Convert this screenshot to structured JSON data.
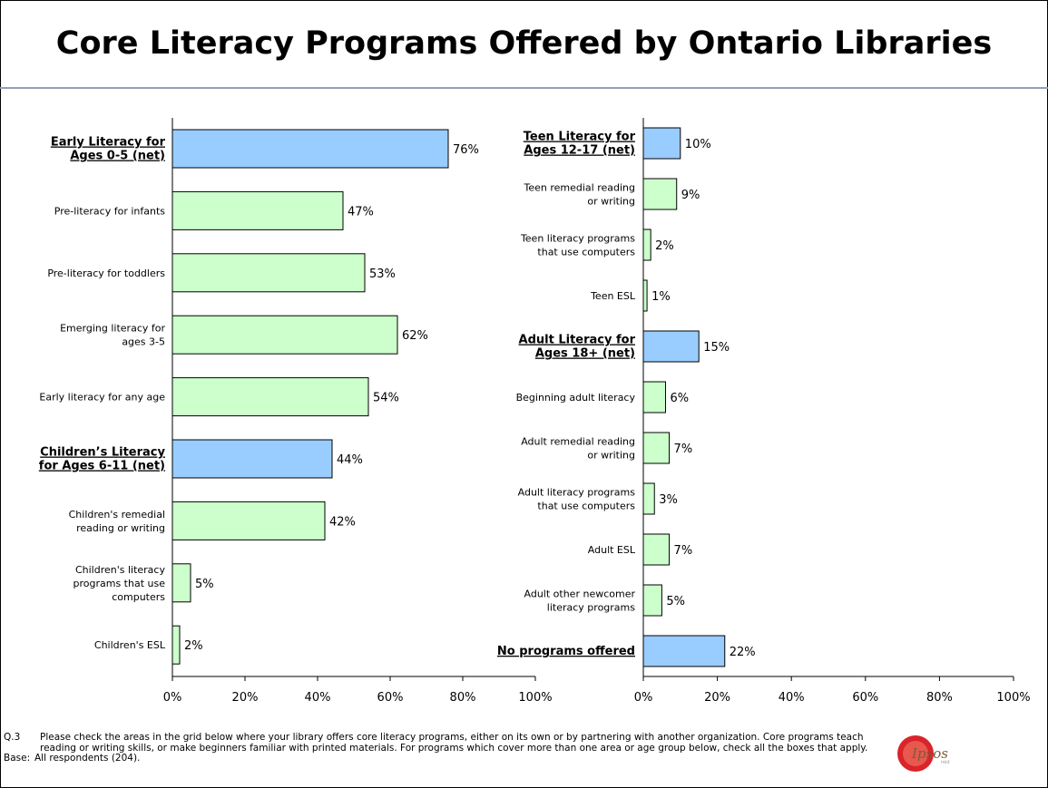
{
  "title": "Core Literacy Programs Offered by Ontario Libraries",
  "colors": {
    "net": "#99ccff",
    "item": "#ccffcc",
    "border": "#000000",
    "rule": "#8fa0b8"
  },
  "chart_data": [
    {
      "type": "bar",
      "orientation": "horizontal",
      "xlim": [
        0,
        100
      ],
      "xticks": [
        "0%",
        "20%",
        "40%",
        "60%",
        "80%",
        "100%"
      ],
      "categories": [
        "Early Literacy for Ages 0-5 (net)",
        "Pre-literacy for infants",
        "Pre-literacy for toddlers",
        "Emerging literacy for ages 3-5",
        "Early literacy for any age",
        "Children’s Literacy for Ages 6-11 (net)",
        "Children's remedial reading or writing",
        "Children's literacy programs that use computers",
        "Children's ESL"
      ],
      "values": [
        76,
        47,
        53,
        62,
        54,
        44,
        42,
        5,
        2
      ],
      "value_labels": [
        "76%",
        "47%",
        "53%",
        "62%",
        "54%",
        "44%",
        "42%",
        "5%",
        "2%"
      ],
      "is_net": [
        true,
        false,
        false,
        false,
        false,
        true,
        false,
        false,
        false
      ],
      "grid": false
    },
    {
      "type": "bar",
      "orientation": "horizontal",
      "xlim": [
        0,
        100
      ],
      "xticks": [
        "0%",
        "20%",
        "40%",
        "60%",
        "80%",
        "100%"
      ],
      "categories": [
        "Teen Literacy for Ages 12-17 (net)",
        "Teen remedial reading or writing",
        "Teen literacy programs that use computers",
        "Teen ESL",
        "Adult Literacy for Ages 18+ (net)",
        "Beginning adult literacy",
        "Adult remedial reading or writing",
        "Adult literacy programs that use computers",
        "Adult ESL",
        "Adult other newcomer literacy programs",
        "No programs offered"
      ],
      "values": [
        10,
        9,
        2,
        1,
        15,
        6,
        7,
        3,
        7,
        5,
        22
      ],
      "value_labels": [
        "10%",
        "9%",
        "2%",
        "1%",
        "15%",
        "6%",
        "7%",
        "3%",
        "7%",
        "5%",
        "22%"
      ],
      "is_net": [
        true,
        false,
        false,
        false,
        true,
        false,
        false,
        false,
        false,
        false,
        true
      ],
      "grid": false
    }
  ],
  "footnote": {
    "q_key": "Q.3",
    "q_text": "Please check the areas in the grid below where your library offers core literacy programs, either on its own or by partnering with another organization.  Core programs teach reading or writing skills, or make beginners familiar with printed materials.  For programs which cover more than one area or age group below, check all the boxes that apply.",
    "base_key": "Base:",
    "base_text": "All respondents (204)."
  },
  "logo": {
    "text": "Ipsos"
  }
}
